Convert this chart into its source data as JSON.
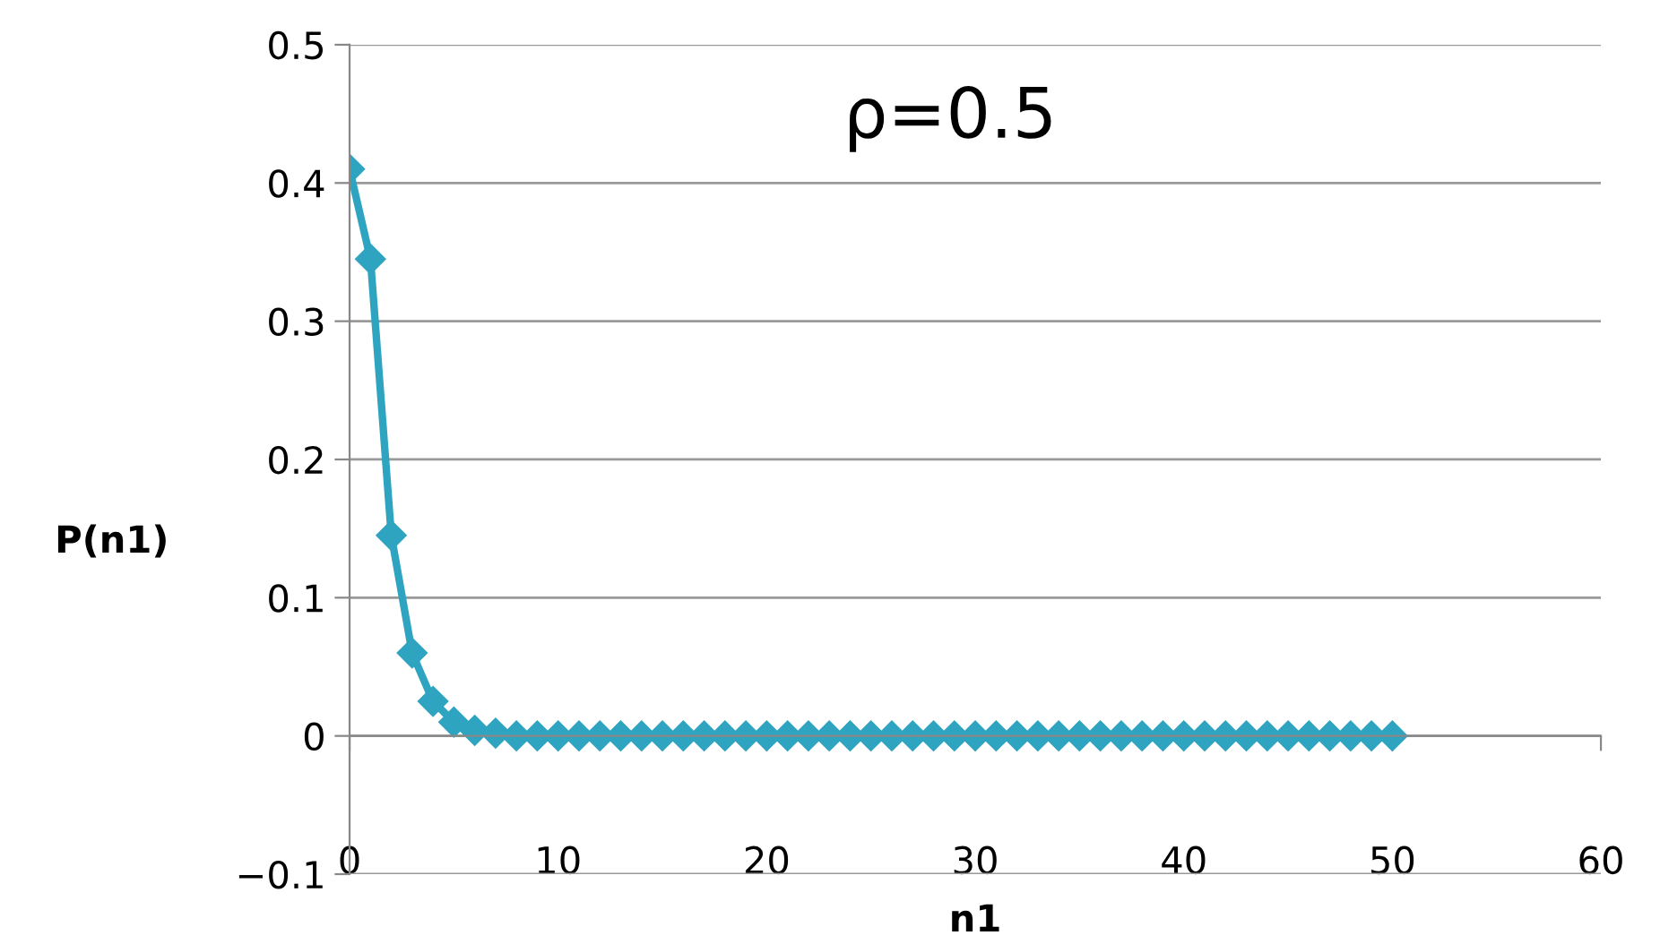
{
  "chart_data": {
    "type": "line",
    "title": "ρ=0.5",
    "xlabel": "n1",
    "ylabel": "P(n1)",
    "x": [
      0,
      1,
      2,
      3,
      4,
      5,
      6,
      7,
      8,
      9,
      10,
      11,
      12,
      13,
      14,
      15,
      16,
      17,
      18,
      19,
      20,
      21,
      22,
      23,
      24,
      25,
      26,
      27,
      28,
      29,
      30,
      31,
      32,
      33,
      34,
      35,
      36,
      37,
      38,
      39,
      40,
      41,
      42,
      43,
      44,
      45,
      46,
      47,
      48,
      49,
      50
    ],
    "series": [
      {
        "color": "#2fa4c0",
        "values": [
          0.41,
          0.345,
          0.145,
          0.06,
          0.025,
          0.01,
          0.004,
          0.002,
          0,
          0,
          0,
          0,
          0,
          0,
          0,
          0,
          0,
          0,
          0,
          0,
          0,
          0,
          0,
          0,
          0,
          0,
          0,
          0,
          0,
          0,
          0,
          0,
          0,
          0,
          0,
          0,
          0,
          0,
          0,
          0,
          0,
          0,
          0,
          0,
          0,
          0,
          0,
          0,
          0,
          0,
          0
        ]
      }
    ],
    "xlim": [
      0,
      60
    ],
    "ylim": [
      -0.1,
      0.5
    ],
    "xticks": [
      0,
      10,
      20,
      30,
      40,
      50,
      60
    ],
    "yticks": [
      {
        "value": -0.1,
        "label": "−0.1"
      },
      0,
      0.1,
      0.2,
      0.3,
      0.4,
      0.5
    ],
    "grid": "y",
    "marker": "diamond",
    "line_style": "solid"
  }
}
